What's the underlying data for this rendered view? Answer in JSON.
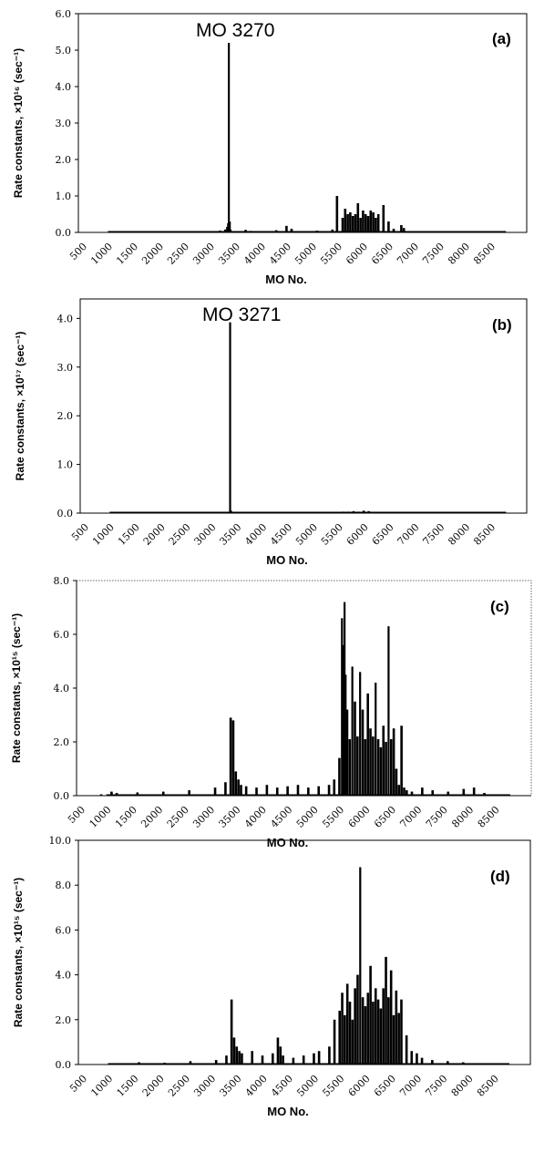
{
  "chart_data": [
    {
      "type": "bar",
      "panel": "(a)",
      "annotation": "MO 3270",
      "ylabel": "Rate constants, ×10¹⁶ (sec⁻¹)",
      "xlabel": "MO No.",
      "ylim": [
        0,
        6.0
      ],
      "yticks": [
        "0.0",
        "1.0",
        "2.0",
        "3.0",
        "4.0",
        "5.0",
        "6.0"
      ],
      "xticks": [
        "500",
        "1000",
        "1500",
        "2000",
        "2500",
        "3000",
        "3500",
        "4000",
        "4500",
        "5000",
        "5500",
        "6000",
        "6500",
        "7000",
        "7500",
        "8000",
        "8500"
      ],
      "x": [
        3000,
        3100,
        3200,
        3240,
        3260,
        3270,
        3285,
        3300,
        3400,
        3600,
        3700,
        4200,
        4400,
        4500,
        5000,
        5300,
        5390,
        5400,
        5500,
        5550,
        5600,
        5650,
        5700,
        5750,
        5800,
        5850,
        5900,
        5950,
        6000,
        6050,
        6100,
        6150,
        6200,
        6300,
        6400,
        6500,
        6600,
        6650,
        6700,
        6800
      ],
      "values": [
        0.02,
        0.05,
        0.08,
        0.15,
        0.25,
        5.2,
        0.3,
        0.08,
        0.03,
        0.07,
        0.04,
        0.06,
        0.18,
        0.1,
        0.05,
        0.08,
        1.0,
        0.03,
        0.4,
        0.65,
        0.5,
        0.55,
        0.45,
        0.5,
        0.8,
        0.4,
        0.6,
        0.5,
        0.45,
        0.6,
        0.55,
        0.4,
        0.5,
        0.75,
        0.3,
        0.1,
        0.03,
        0.2,
        0.12,
        0.02
      ]
    },
    {
      "type": "bar",
      "panel": "(b)",
      "annotation": "MO 3271",
      "ylabel": "Rate constants, ×10¹⁷ (sec⁻¹)",
      "xlabel": "MO No.",
      "ylim": [
        0,
        4.4
      ],
      "yticks": [
        "0.0",
        "1.0",
        "2.0",
        "3.0",
        "4.0"
      ],
      "xticks": [
        "500",
        "1000",
        "1500",
        "2000",
        "2500",
        "3000",
        "3500",
        "4000",
        "4500",
        "5000",
        "5500",
        "6000",
        "6500",
        "7000",
        "7500",
        "8000",
        "8500"
      ],
      "x": [
        3260,
        3271,
        3285,
        5400,
        5500,
        5600,
        5700,
        5800,
        5900,
        6000,
        6100
      ],
      "values": [
        0.02,
        3.92,
        0.05,
        0.02,
        0.03,
        0.03,
        0.04,
        0.03,
        0.05,
        0.04,
        0.02
      ]
    },
    {
      "type": "bar",
      "panel": "(c)",
      "ylabel": "Rate constants, ×10¹⁵ (sec⁻¹)",
      "xlabel": "MO No.",
      "ylim": [
        0,
        8.0
      ],
      "yticks": [
        "0.0",
        "2.0",
        "4.0",
        "6.0",
        "8.0"
      ],
      "xticks": [
        "500",
        "1000",
        "1500",
        "2000",
        "2500",
        "3000",
        "3500",
        "4000",
        "4500",
        "5000",
        "5500",
        "6000",
        "6500",
        "7000",
        "7500",
        "8000",
        "8500"
      ],
      "x": [
        800,
        1000,
        1100,
        1500,
        2000,
        2500,
        3000,
        3200,
        3300,
        3350,
        3400,
        3450,
        3500,
        3600,
        3800,
        4000,
        4200,
        4400,
        4600,
        4800,
        5000,
        5200,
        5300,
        5400,
        5450,
        5480,
        5500,
        5520,
        5550,
        5600,
        5650,
        5700,
        5750,
        5800,
        5850,
        5900,
        5950,
        6000,
        6050,
        6100,
        6150,
        6200,
        6250,
        6300,
        6350,
        6400,
        6450,
        6500,
        6550,
        6600,
        6650,
        6700,
        6800,
        7000,
        7200,
        7500,
        7800,
        8000,
        8200
      ],
      "values": [
        0.05,
        0.15,
        0.1,
        0.12,
        0.15,
        0.2,
        0.3,
        0.5,
        2.9,
        2.8,
        0.9,
        0.6,
        0.4,
        0.35,
        0.3,
        0.4,
        0.3,
        0.35,
        0.4,
        0.3,
        0.35,
        0.4,
        0.6,
        1.4,
        6.6,
        5.6,
        7.2,
        4.5,
        3.2,
        2.1,
        4.8,
        3.5,
        2.2,
        4.6,
        3.2,
        2.1,
        3.8,
        2.5,
        2.2,
        4.2,
        2.1,
        1.8,
        2.6,
        2.0,
        6.3,
        2.1,
        2.5,
        1.0,
        0.4,
        2.6,
        0.3,
        0.2,
        0.15,
        0.3,
        0.2,
        0.15,
        0.25,
        0.3,
        0.1
      ]
    },
    {
      "type": "bar",
      "panel": "(d)",
      "ylabel": "Rate constants, ×10¹⁵ (sec⁻¹)",
      "xlabel": "MO No.",
      "ylim": [
        0,
        10.0
      ],
      "yticks": [
        "0.0",
        "2.0",
        "4.0",
        "6.0",
        "8.0",
        "10.0"
      ],
      "xticks": [
        "500",
        "1000",
        "1500",
        "2000",
        "2500",
        "3000",
        "3500",
        "4000",
        "4500",
        "5000",
        "5500",
        "6000",
        "6500",
        "7000",
        "7500",
        "8000",
        "8500"
      ],
      "x": [
        1000,
        1500,
        2000,
        2500,
        3000,
        3200,
        3300,
        3350,
        3400,
        3450,
        3500,
        3700,
        3900,
        4100,
        4200,
        4250,
        4300,
        4500,
        4700,
        4900,
        5000,
        5200,
        5300,
        5400,
        5450,
        5500,
        5550,
        5600,
        5650,
        5700,
        5750,
        5800,
        5850,
        5900,
        5950,
        6000,
        6050,
        6100,
        6150,
        6200,
        6250,
        6300,
        6350,
        6400,
        6450,
        6500,
        6550,
        6600,
        6700,
        6800,
        6900,
        7000,
        7200,
        7500,
        7800,
        8000
      ],
      "values": [
        0.05,
        0.1,
        0.08,
        0.15,
        0.2,
        0.4,
        2.9,
        1.2,
        0.8,
        0.6,
        0.5,
        0.6,
        0.4,
        0.5,
        1.2,
        0.8,
        0.4,
        0.3,
        0.4,
        0.5,
        0.6,
        0.8,
        2.0,
        2.4,
        3.2,
        2.2,
        3.6,
        2.8,
        2.0,
        3.4,
        4.0,
        8.8,
        3.0,
        2.6,
        3.2,
        4.4,
        2.8,
        3.4,
        2.9,
        2.5,
        3.4,
        4.8,
        3.0,
        4.2,
        2.2,
        3.3,
        2.3,
        2.9,
        1.3,
        0.6,
        0.5,
        0.3,
        0.2,
        0.15,
        0.1,
        0.05
      ]
    }
  ]
}
